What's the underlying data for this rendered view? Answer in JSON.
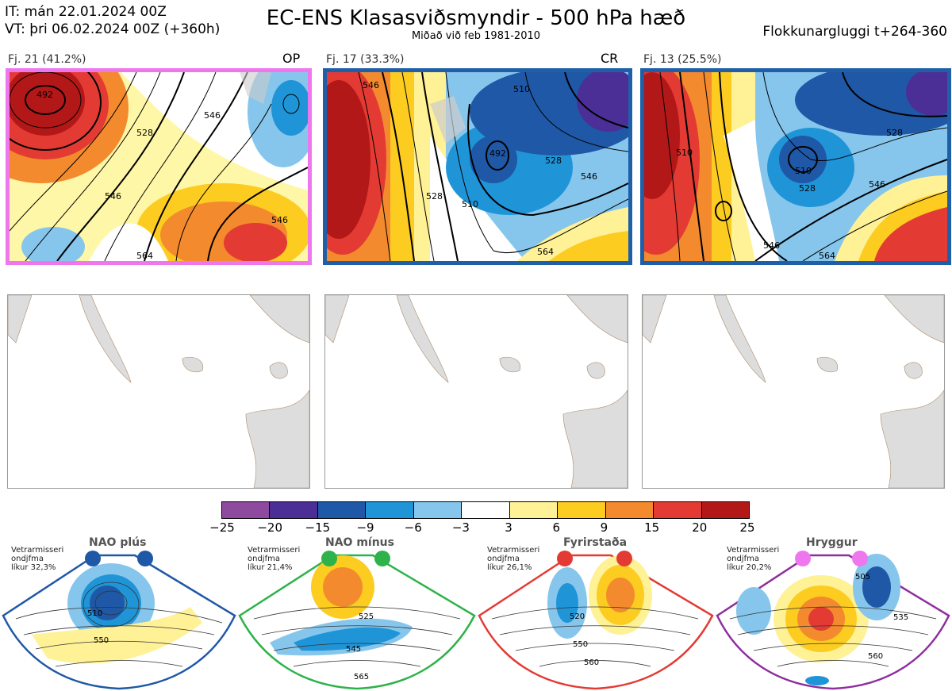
{
  "header": {
    "it_line": "IT: mán 22.01.2024 00Z",
    "vt_line": "VT: þri 06.02.2024 00Z  (+360h)",
    "title": "EC-ENS Klasasviðsmyndir - 500 hPa hæð",
    "subtitle": "Miðað við feb 1981-2010",
    "window": "Flokkunargluggi t+264-360"
  },
  "clusters": [
    {
      "label": "Fj. 21 (41.2%)",
      "tag": "OP",
      "frame_color": "#ee77ee",
      "contours": [
        "492",
        "528",
        "546",
        "546",
        "564",
        "546"
      ]
    },
    {
      "label": "Fj. 17 (33.3%)",
      "tag": "CR",
      "frame_color": "#1f5fa8",
      "contours": [
        "546",
        "528",
        "510",
        "492",
        "510",
        "528",
        "546",
        "564"
      ]
    },
    {
      "label": "Fj. 13 (25.5%)",
      "tag": "",
      "frame_color": "#1f5fa8",
      "contours": [
        "510",
        "528",
        "546",
        "564",
        "546",
        "528",
        "510"
      ]
    }
  ],
  "colorbar": {
    "colors": [
      "#8e4a9e",
      "#4b2f96",
      "#1f58a6",
      "#1f95d8",
      "#86c6ec",
      "#ffffff",
      "#fff196",
      "#fccc21",
      "#f38a2e",
      "#e33b33",
      "#b31818"
    ],
    "ticks": [
      "−25",
      "−20",
      "−15",
      "−9",
      "−6",
      "−3",
      "3",
      "6",
      "9",
      "15",
      "20",
      "25"
    ]
  },
  "regimes": [
    {
      "title": "NAO plús",
      "prob_lines": [
        "Vetrarmisseri",
        "ondjfma",
        "líkur 32,3%"
      ],
      "dot_color": "#1f58a6",
      "frame_color": "#1f58a6",
      "contours": [
        "510",
        "550"
      ]
    },
    {
      "title": "NAO mínus",
      "prob_lines": [
        "Vetrarmisseri",
        "ondjfma",
        "líkur 21,4%"
      ],
      "dot_color": "#2db34a",
      "frame_color": "#2db34a",
      "contours": [
        "525",
        "545",
        "565"
      ]
    },
    {
      "title": "Fyrirstaða",
      "prob_lines": [
        "Vetrarmisseri",
        "ondjfma",
        "líkur 26,1%"
      ],
      "dot_color": "#e33b33",
      "frame_color": "#e33b33",
      "contours": [
        "520",
        "550",
        "560"
      ]
    },
    {
      "title": "Hryggur",
      "prob_lines": [
        "Vetrarmisseri",
        "ondjfma",
        "líkur 20,2%"
      ],
      "dot_color": "#ee77ee",
      "frame_color": "#8e2e9e",
      "contours": [
        "505",
        "535",
        "560"
      ]
    }
  ]
}
